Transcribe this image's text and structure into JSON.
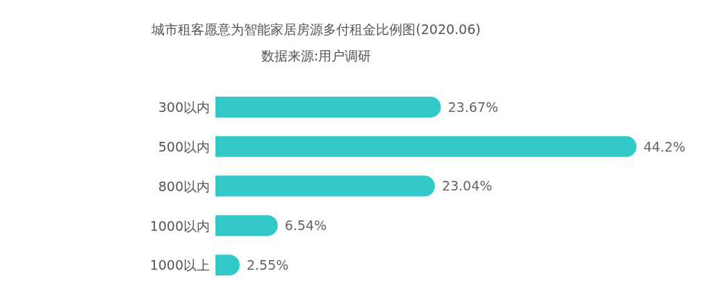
{
  "chart_data": {
    "type": "bar",
    "orientation": "horizontal",
    "title": "城市租客愿意为智能家居房源多付租金比例图(2020.06)",
    "subtitle": "数据来源:用户调研",
    "categories": [
      "300以内",
      "500以内",
      "800以内",
      "1000以内",
      "1000以上"
    ],
    "values": [
      23.67,
      44.2,
      23.04,
      6.54,
      2.55
    ],
    "value_labels": [
      "23.67%",
      "44.2%",
      "23.04%",
      "6.54%",
      "2.55%"
    ],
    "color": "#33c9c8",
    "grid": false,
    "legend": false
  }
}
